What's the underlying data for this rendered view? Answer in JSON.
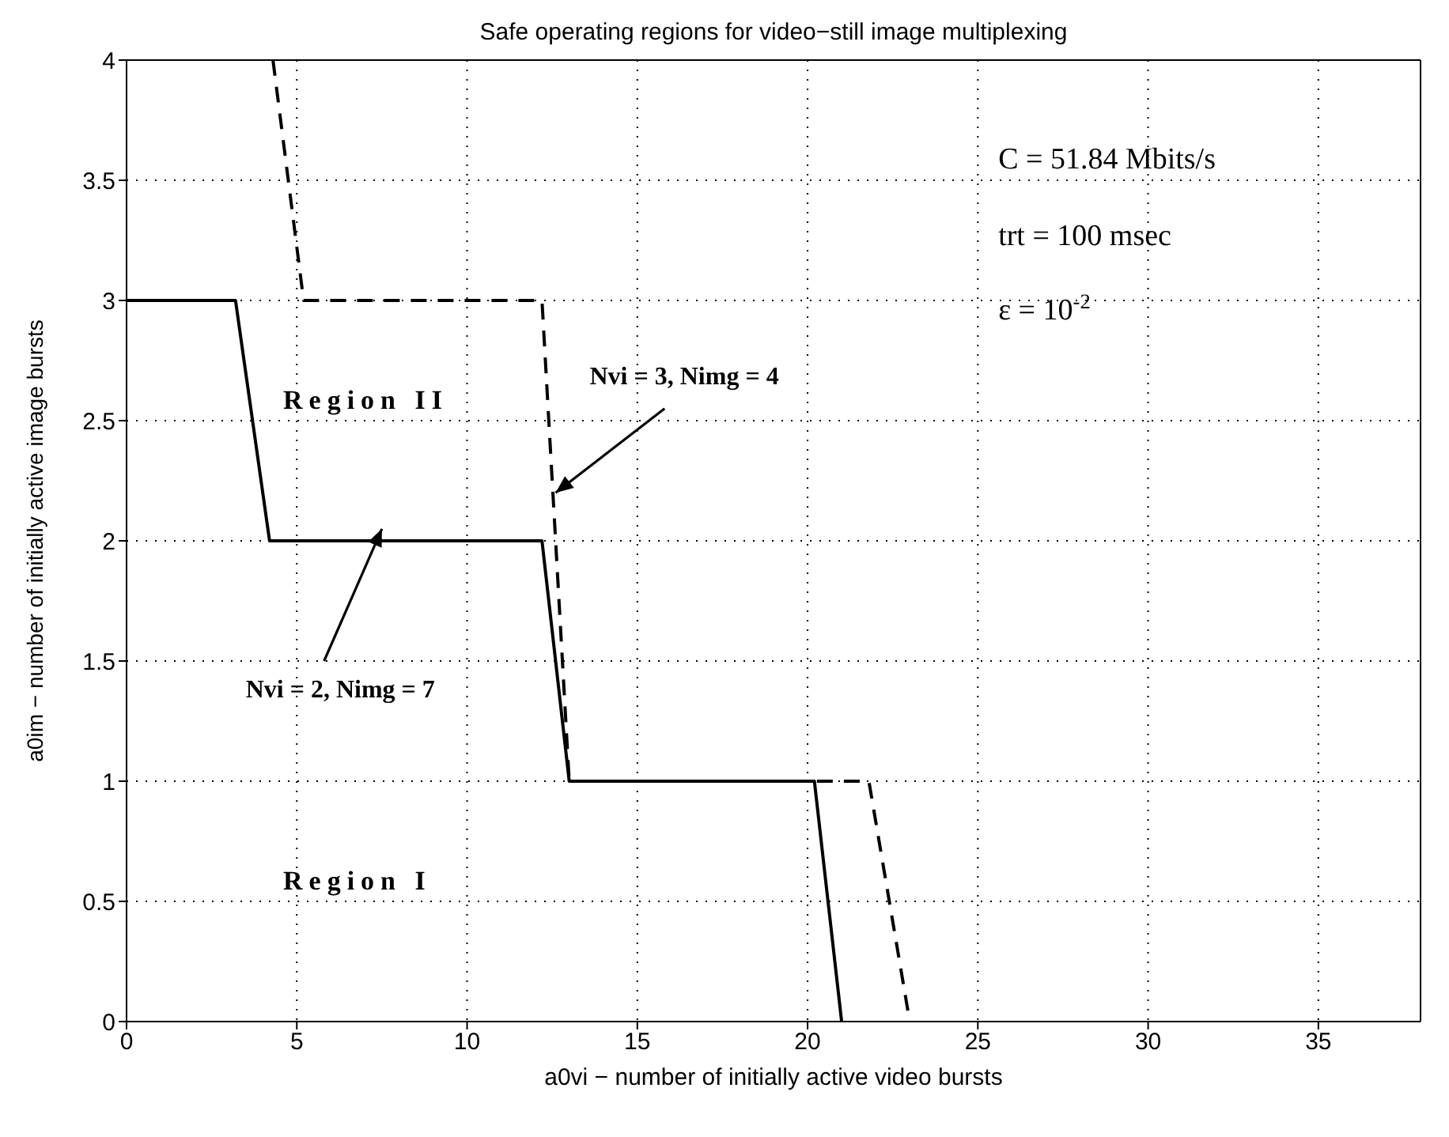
{
  "chart_data": {
    "type": "line",
    "title": "Safe operating regions for video−still image multiplexing",
    "xlabel": "a0vi − number of initially active video bursts",
    "ylabel": "a0im − number of initially active image bursts",
    "series": [
      {
        "color": "#000000",
        "line_style": "solid",
        "x": [
          0,
          3.2,
          4.2,
          12.2,
          13,
          20.2,
          21
        ],
        "values": [
          3,
          3,
          2,
          2,
          1,
          1,
          0
        ]
      },
      {
        "color": "#000000",
        "line_style": "dashed",
        "x": [
          4.3,
          5.2,
          12.2,
          13,
          21.8,
          23
        ],
        "values": [
          4,
          3,
          3,
          1,
          1,
          0
        ]
      }
    ],
    "xlim": [
      0,
      38
    ],
    "xticks": [
      0,
      5,
      10,
      15,
      20,
      25,
      30,
      35
    ],
    "ylim": [
      0,
      4
    ],
    "yticks": [
      0,
      0.5,
      1,
      1.5,
      2,
      2.5,
      3,
      3.5,
      4
    ],
    "grid": true,
    "marker": "none",
    "annotations": [
      "C = 51.84 Mbits/s",
      "trt = 100 msec",
      "ε = 10$^{-2}$",
      "Region II",
      "Region I",
      {
        "text": "Nvi = 3, Nimg = 4",
        "x": 12.6,
        "y": 2.2
      },
      "Nvi = 2, Nimg = 7"
    ]
  }
}
